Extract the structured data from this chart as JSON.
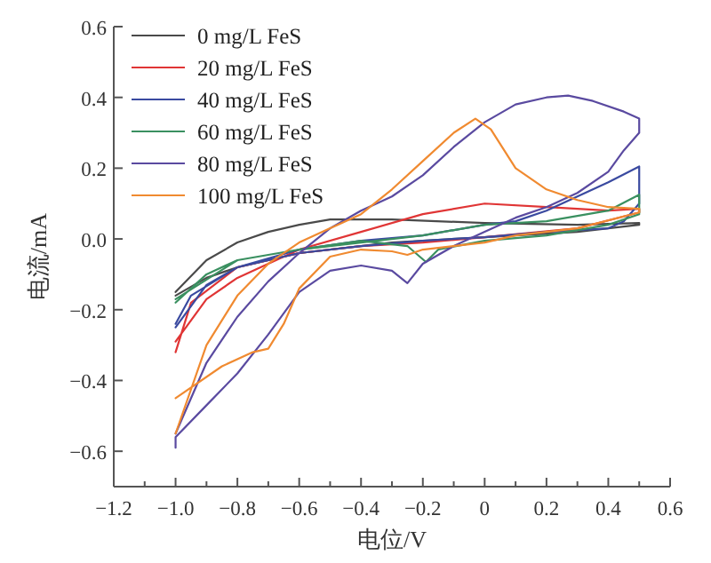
{
  "chart_data": {
    "type": "line",
    "xlabel": "电位/V",
    "ylabel": "电流/mA",
    "xlim": [
      -1.2,
      0.6
    ],
    "ylim": [
      -0.7,
      0.6
    ],
    "xticks": [
      {
        "value": -1.2,
        "label": "−1.2"
      },
      {
        "value": -1.1,
        "label": null
      },
      {
        "value": -1.0,
        "label": "−1.0"
      },
      {
        "value": -0.9,
        "label": null
      },
      {
        "value": -0.8,
        "label": "−0.8"
      },
      {
        "value": -0.7,
        "label": null
      },
      {
        "value": -0.6,
        "label": "−0.6"
      },
      {
        "value": -0.5,
        "label": null
      },
      {
        "value": -0.4,
        "label": "−0.4"
      },
      {
        "value": -0.3,
        "label": null
      },
      {
        "value": -0.2,
        "label": "−0.2"
      },
      {
        "value": -0.1,
        "label": null
      },
      0,
      {
        "value": 0.1,
        "label": null
      },
      {
        "value": 0.2,
        "label": "0.2"
      },
      {
        "value": 0.3,
        "label": null
      },
      {
        "value": 0.4,
        "label": "0.4"
      },
      {
        "value": 0.5,
        "label": null
      },
      {
        "value": 0.6,
        "label": "0.6"
      }
    ],
    "yticks": [
      {
        "value": -0.6,
        "label": "−0.6"
      },
      {
        "value": -0.4,
        "label": "−0.4"
      },
      {
        "value": -0.2,
        "label": "−0.2"
      },
      {
        "value": 0,
        "label": "0.0"
      },
      {
        "value": 0.2,
        "label": "0.2"
      },
      {
        "value": 0.4,
        "label": "0.4"
      },
      {
        "value": 0.6,
        "label": "0.6"
      }
    ],
    "legend": "top left",
    "grid": false,
    "series": [
      {
        "name": "0 mg/L FeS",
        "color": "#4a4a4a",
        "x": [
          -1.0,
          -0.9,
          -0.8,
          -0.7,
          -0.6,
          -0.5,
          -0.3,
          0,
          0.3,
          0.5,
          0.5,
          0.3,
          0,
          -0.3,
          -0.6,
          -0.8,
          -0.9,
          -1.0
        ],
        "values": [
          -0.15,
          -0.06,
          -0.01,
          0.02,
          0.04,
          0.055,
          0.055,
          0.045,
          0.04,
          0.045,
          0.04,
          0.02,
          0.005,
          -0.01,
          -0.04,
          -0.08,
          -0.11,
          -0.16
        ]
      },
      {
        "name": "20 mg/L FeS",
        "color": "#e03535",
        "x": [
          -1.0,
          -0.9,
          -0.8,
          -0.6,
          -0.4,
          -0.2,
          0,
          0.2,
          0.4,
          0.5,
          0.5,
          0.3,
          0,
          -0.2,
          -0.4,
          -0.6,
          -0.8,
          -0.95,
          -1.0
        ],
        "values": [
          -0.29,
          -0.17,
          -0.11,
          -0.03,
          0.02,
          0.07,
          0.1,
          0.09,
          0.08,
          0.085,
          0.075,
          0.03,
          0.005,
          -0.01,
          -0.02,
          -0.04,
          -0.08,
          -0.18,
          -0.32
        ]
      },
      {
        "name": "40 mg/L FeS",
        "color": "#3a4aa0",
        "x": [
          -1.0,
          -0.9,
          -0.8,
          -0.6,
          -0.4,
          -0.2,
          0,
          0.1,
          0.2,
          0.3,
          0.4,
          0.5,
          0.5,
          0.45,
          0.4,
          0.2,
          0,
          -0.2,
          -0.4,
          -0.6,
          -0.8,
          -0.95,
          -1.0
        ],
        "values": [
          -0.25,
          -0.13,
          -0.08,
          -0.03,
          -0.005,
          0.01,
          0.04,
          0.05,
          0.08,
          0.12,
          0.16,
          0.205,
          0.1,
          0.05,
          0.03,
          0.02,
          0.005,
          -0.005,
          -0.02,
          -0.04,
          -0.08,
          -0.16,
          -0.24
        ]
      },
      {
        "name": "60 mg/L FeS",
        "color": "#3a9060",
        "x": [
          -1.0,
          -0.9,
          -0.8,
          -0.6,
          -0.4,
          -0.2,
          0,
          0.2,
          0.4,
          0.5,
          0.5,
          0.4,
          0.2,
          0,
          -0.15,
          -0.19,
          -0.25,
          -0.4,
          -0.6,
          -0.8,
          -1.0
        ],
        "values": [
          -0.18,
          -0.1,
          -0.06,
          -0.03,
          -0.01,
          0.01,
          0.04,
          0.05,
          0.08,
          0.125,
          0.07,
          0.04,
          0.01,
          -0.005,
          -0.03,
          -0.065,
          -0.02,
          -0.005,
          -0.03,
          -0.06,
          -0.17
        ]
      },
      {
        "name": "80 mg/L FeS",
        "color": "#5a4aa0",
        "x": [
          -1.0,
          -0.9,
          -0.8,
          -0.7,
          -0.6,
          -0.5,
          -0.4,
          -0.3,
          -0.2,
          -0.1,
          0,
          0.1,
          0.2,
          0.27,
          0.35,
          0.45,
          0.5,
          0.5,
          0.45,
          0.4,
          0.3,
          0.2,
          0.1,
          0,
          -0.1,
          -0.2,
          -0.25,
          -0.3,
          -0.4,
          -0.5,
          -0.6,
          -0.7,
          -0.8,
          -0.9,
          -1.0,
          -1.0
        ],
        "values": [
          -0.55,
          -0.35,
          -0.22,
          -0.12,
          -0.04,
          0.03,
          0.08,
          0.12,
          0.18,
          0.26,
          0.33,
          0.38,
          0.4,
          0.405,
          0.39,
          0.36,
          0.34,
          0.3,
          0.25,
          0.19,
          0.13,
          0.09,
          0.06,
          0.02,
          -0.02,
          -0.07,
          -0.125,
          -0.09,
          -0.075,
          -0.09,
          -0.15,
          -0.27,
          -0.38,
          -0.47,
          -0.56,
          -0.59
        ]
      },
      {
        "name": "100 mg/L FeS",
        "color": "#f08a30",
        "x": [
          -1.0,
          -0.9,
          -0.8,
          -0.7,
          -0.6,
          -0.5,
          -0.4,
          -0.3,
          -0.2,
          -0.1,
          -0.03,
          0.02,
          0.1,
          0.2,
          0.3,
          0.4,
          0.5,
          0.5,
          0.3,
          0.1,
          0,
          -0.2,
          -0.25,
          -0.3,
          -0.4,
          -0.5,
          -0.6,
          -0.65,
          -0.7,
          -0.75,
          -0.85,
          -1.0
        ],
        "values": [
          -0.55,
          -0.3,
          -0.16,
          -0.07,
          -0.01,
          0.03,
          0.07,
          0.14,
          0.22,
          0.3,
          0.34,
          0.31,
          0.2,
          0.14,
          0.11,
          0.09,
          0.085,
          0.075,
          0.03,
          0.01,
          -0.01,
          -0.03,
          -0.045,
          -0.035,
          -0.03,
          -0.05,
          -0.14,
          -0.24,
          -0.31,
          -0.32,
          -0.36,
          -0.45
        ]
      }
    ]
  }
}
